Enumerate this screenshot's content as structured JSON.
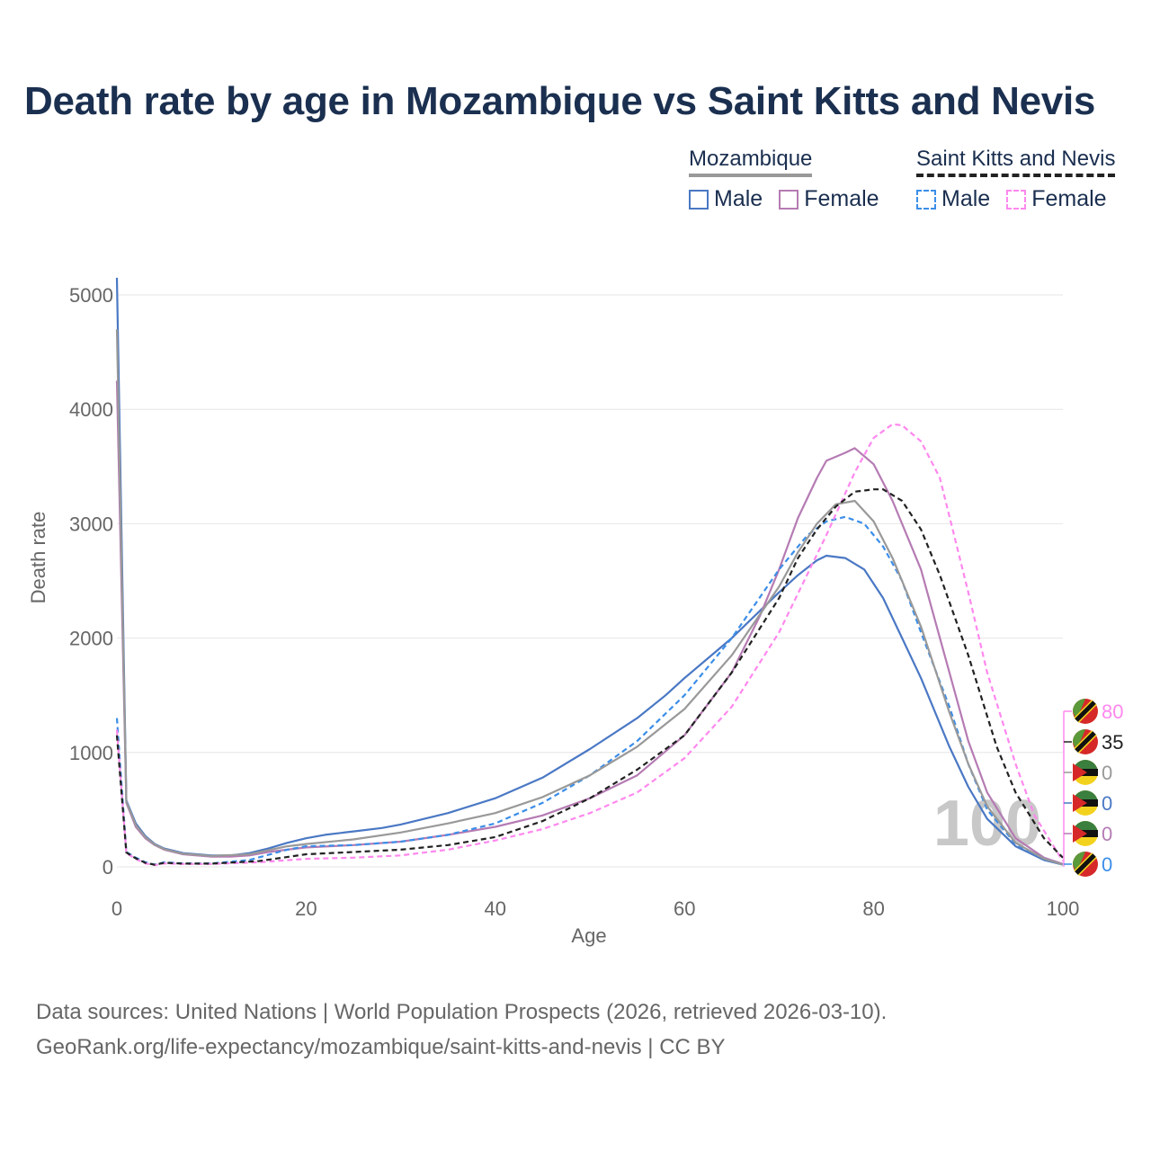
{
  "chart_data": {
    "type": "line",
    "title": "Death rate by age in Mozambique vs Saint Kitts and Nevis",
    "xlabel": "Age",
    "ylabel": "Death rate",
    "xlim": [
      0,
      100
    ],
    "ylim": [
      0,
      5200
    ],
    "x_ticks": [
      "0",
      "20",
      "40",
      "60",
      "80",
      "100"
    ],
    "y_ticks": [
      "0",
      "1000",
      "2000",
      "3000",
      "4000",
      "5000"
    ],
    "current_year": "100",
    "legend": {
      "groups": [
        {
          "name": "Mozambique",
          "items": [
            "Male",
            "Female"
          ]
        },
        {
          "name": "Saint Kitts and Nevis",
          "items": [
            "Male",
            "Female"
          ]
        }
      ]
    },
    "series": [
      {
        "name": "Mozambique Male",
        "country": "Mozambique",
        "sex": "Male",
        "color": "#4a78c4",
        "dash": false,
        "x": [
          0,
          1,
          2,
          3,
          4,
          5,
          7,
          10,
          12,
          14,
          16,
          18,
          20,
          22,
          25,
          28,
          30,
          35,
          40,
          45,
          50,
          55,
          58,
          60,
          65,
          70,
          72,
          74,
          75,
          77,
          79,
          81,
          83,
          85,
          88,
          90,
          92,
          95,
          98,
          100
        ],
        "values": [
          5150,
          580,
          380,
          270,
          200,
          160,
          120,
          100,
          100,
          120,
          160,
          210,
          250,
          280,
          310,
          340,
          370,
          470,
          600,
          780,
          1030,
          1300,
          1500,
          1650,
          2000,
          2400,
          2550,
          2680,
          2720,
          2700,
          2600,
          2350,
          2000,
          1650,
          1050,
          700,
          420,
          180,
          60,
          20
        ]
      },
      {
        "name": "Mozambique Female",
        "country": "Mozambique",
        "sex": "Female",
        "color": "#b57bb3",
        "dash": false,
        "x": [
          0,
          1,
          2,
          3,
          4,
          5,
          7,
          10,
          12,
          14,
          16,
          18,
          20,
          25,
          30,
          35,
          40,
          45,
          50,
          55,
          60,
          65,
          68,
          70,
          72,
          74,
          75,
          77,
          78,
          80,
          82,
          85,
          88,
          90,
          92,
          95,
          98,
          100
        ],
        "values": [
          4250,
          560,
          350,
          250,
          190,
          150,
          110,
          90,
          90,
          100,
          130,
          150,
          170,
          190,
          220,
          280,
          350,
          450,
          600,
          800,
          1150,
          1700,
          2200,
          2600,
          3050,
          3400,
          3550,
          3620,
          3660,
          3520,
          3200,
          2600,
          1700,
          1100,
          650,
          250,
          80,
          25
        ]
      },
      {
        "name": "Saint Kitts and Nevis Male",
        "country": "Saint Kitts and Nevis",
        "sex": "Male",
        "color": "#3b8ee8",
        "dash": true,
        "x": [
          0,
          1,
          2,
          3,
          4,
          5,
          7,
          10,
          14,
          18,
          20,
          25,
          30,
          35,
          40,
          45,
          50,
          55,
          60,
          65,
          70,
          73,
          75,
          77,
          79,
          81,
          83,
          85,
          88,
          90,
          92,
          95,
          98,
          100
        ],
        "values": [
          1300,
          130,
          80,
          40,
          20,
          40,
          30,
          30,
          60,
          150,
          180,
          190,
          220,
          280,
          380,
          560,
          800,
          1100,
          1500,
          2000,
          2600,
          2900,
          3020,
          3060,
          3000,
          2800,
          2500,
          2050,
          1400,
          900,
          500,
          200,
          70,
          20
        ]
      },
      {
        "name": "Saint Kitts and Nevis Female",
        "country": "Saint Kitts and Nevis",
        "sex": "Female",
        "color": "#ff88ee",
        "dash": true,
        "x": [
          0,
          1,
          2,
          3,
          4,
          5,
          7,
          10,
          15,
          20,
          25,
          30,
          35,
          40,
          45,
          50,
          55,
          60,
          65,
          70,
          75,
          78,
          80,
          82,
          83,
          85,
          87,
          90,
          92,
          95,
          97,
          100
        ],
        "values": [
          1200,
          120,
          70,
          30,
          15,
          30,
          25,
          25,
          40,
          70,
          80,
          100,
          150,
          230,
          330,
          470,
          650,
          950,
          1400,
          2050,
          2900,
          3450,
          3750,
          3870,
          3860,
          3720,
          3400,
          2400,
          1700,
          900,
          450,
          50
        ]
      },
      {
        "name": "Mozambique Total",
        "country": "Mozambique",
        "sex": "Total",
        "color": "#999999",
        "dash": false,
        "x": [
          0,
          1,
          2,
          3,
          4,
          5,
          7,
          10,
          14,
          18,
          20,
          25,
          30,
          35,
          40,
          45,
          50,
          55,
          60,
          65,
          70,
          72,
          74,
          76,
          78,
          80,
          82,
          85,
          88,
          90,
          92,
          95,
          98,
          100
        ],
        "values": [
          4700,
          570,
          365,
          260,
          195,
          155,
          115,
          95,
          110,
          180,
          200,
          240,
          300,
          380,
          470,
          610,
          800,
          1050,
          1380,
          1850,
          2450,
          2750,
          3000,
          3170,
          3200,
          3020,
          2700,
          2100,
          1350,
          900,
          530,
          210,
          70,
          20
        ]
      },
      {
        "name": "Saint Kitts and Nevis Total",
        "country": "Saint Kitts and Nevis",
        "sex": "Total",
        "color": "#222222",
        "dash": true,
        "x": [
          0,
          1,
          2,
          3,
          4,
          5,
          7,
          10,
          15,
          20,
          25,
          30,
          35,
          40,
          45,
          50,
          55,
          60,
          65,
          70,
          72,
          74,
          76,
          78,
          80,
          81,
          83,
          85,
          87,
          90,
          93,
          95,
          98,
          100
        ],
        "values": [
          1150,
          125,
          75,
          35,
          18,
          35,
          28,
          28,
          50,
          110,
          130,
          150,
          190,
          260,
          400,
          600,
          850,
          1150,
          1700,
          2350,
          2700,
          2950,
          3150,
          3280,
          3300,
          3300,
          3200,
          2950,
          2550,
          1850,
          1050,
          650,
          250,
          80
        ]
      }
    ],
    "end_labels": [
      {
        "value": "80",
        "color": "#ff88ee",
        "flag": "saint-kitts-and-nevis"
      },
      {
        "value": "35",
        "color": "#222222",
        "flag": "saint-kitts-and-nevis"
      },
      {
        "value": "0",
        "color": "#999999",
        "flag": "mozambique"
      },
      {
        "value": "0",
        "color": "#4a78c4",
        "flag": "mozambique"
      },
      {
        "value": "0",
        "color": "#b57bb3",
        "flag": "mozambique"
      },
      {
        "value": "0",
        "color": "#3b8ee8",
        "flag": "saint-kitts-and-nevis"
      }
    ]
  },
  "source": {
    "line1": "Data sources: United Nations | World Population Prospects (2026, retrieved 2026-03-10).",
    "line2": "GeoRank.org/life-expectancy/mozambique/saint-kitts-and-nevis | CC BY"
  }
}
